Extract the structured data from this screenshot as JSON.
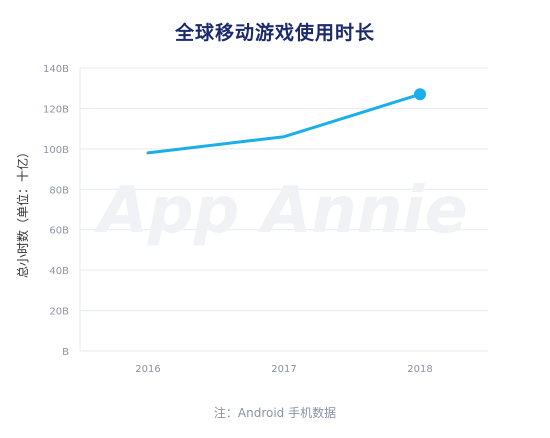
{
  "chart_data": {
    "type": "line",
    "title": "全球移动游戏使用时长",
    "xlabel": "",
    "ylabel": "总小时数（单位：十亿）",
    "categories": [
      "2016",
      "2017",
      "2018"
    ],
    "series": [
      {
        "values": [
          98,
          106,
          127
        ],
        "color": "#1aaeea"
      }
    ],
    "ylim": [
      0,
      140
    ],
    "yticks": [
      {
        "value": 0,
        "label": "B"
      },
      {
        "value": 20,
        "label": "20B"
      },
      {
        "value": 40,
        "label": "40B"
      },
      {
        "value": 60,
        "label": "60B"
      },
      {
        "value": 80,
        "label": "80B"
      },
      {
        "value": 100,
        "label": "100B"
      },
      {
        "value": 120,
        "label": "120B"
      },
      {
        "value": 140,
        "label": "140B"
      }
    ],
    "grid": true,
    "highlight_last_point": true
  },
  "watermark": "App Annie",
  "footnote": "注：Android 手机数据",
  "colors": {
    "title": "#1a2a6c",
    "line": "#1aaeea",
    "grid": "#e6e9ef",
    "axis_text": "#8a93a5",
    "watermark": "#f1f2f5"
  }
}
